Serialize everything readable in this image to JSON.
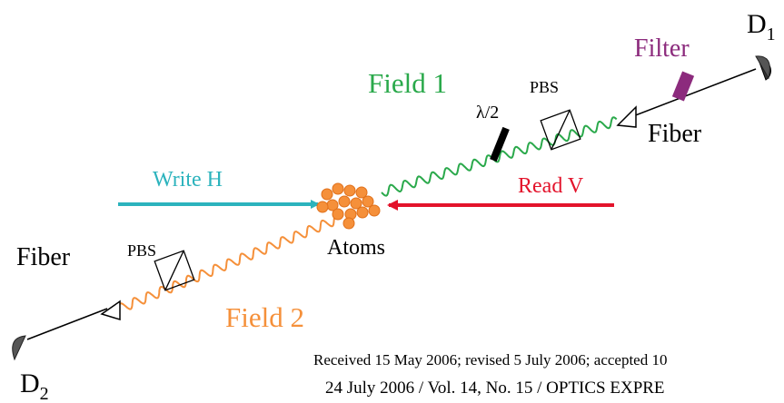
{
  "detectors": [
    {
      "label": "D",
      "sub": "1"
    },
    {
      "label": "D",
      "sub": "2"
    }
  ],
  "labels": {
    "filter": "Filter",
    "field1": "Field 1",
    "pbs_upper": "PBS",
    "half_wave": "λ/2",
    "fiber_upper": "Fiber",
    "write": "Write H",
    "read": "Read V",
    "atoms": "Atoms",
    "fiber_lower": "Fiber",
    "pbs_lower": "PBS",
    "field2": "Field 2"
  },
  "footer": [
    "Received 15 May 2006; revised 5 July 2006; accepted 10",
    "24 July 2006 / Vol. 14,  No. 15 / OPTICS EXPRE"
  ]
}
